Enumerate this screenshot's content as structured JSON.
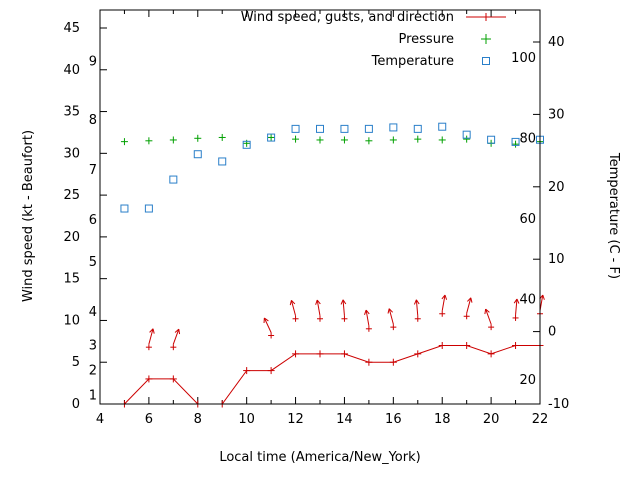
{
  "colors": {
    "wind": "#cc0000",
    "pressure": "#00a000",
    "temperature": "#2a7fc9",
    "axis": "#000000",
    "background": "#ffffff"
  },
  "legend": [
    {
      "label": "Wind speed, gusts, and direction",
      "marker": "line-plus",
      "color_key": "wind"
    },
    {
      "label": "Pressure",
      "marker": "plus",
      "color_key": "pressure"
    },
    {
      "label": "Temperature",
      "marker": "square",
      "color_key": "temperature"
    }
  ],
  "chart_data": {
    "type": "line",
    "title": "",
    "x_axis": {
      "label": "Local time (America/New_York)",
      "range": [
        4,
        22
      ],
      "major_ticks": [
        4,
        6,
        8,
        10,
        12,
        14,
        16,
        18,
        20,
        22
      ],
      "minor_tick_step": 1
    },
    "y_left": {
      "label": "Wind speed (kt - Beaufort)",
      "range": [
        0,
        47.1
      ],
      "ticks": [
        0,
        5,
        10,
        15,
        20,
        25,
        30,
        35,
        40,
        45
      ],
      "beaufort_scale": {
        "1": 1,
        "2": 4,
        "3": 7,
        "4": 11,
        "5": 17,
        "6": 22,
        "7": 28,
        "8": 34,
        "9": 41
      }
    },
    "y_right": {
      "label": "Temperature (C - F)",
      "range": [
        -10,
        44.4
      ],
      "ticks": [
        -10,
        0,
        10,
        20,
        30,
        40
      ],
      "fahrenheit_scale": [
        20,
        40,
        60,
        80,
        100
      ]
    },
    "grid": false,
    "legend_position": "top-right-inside",
    "series": [
      {
        "name": "wind_speed_kt",
        "type": "line",
        "marker": "plus",
        "x": [
          5,
          6,
          7,
          8,
          9,
          10,
          11,
          12,
          13,
          14,
          15,
          16,
          17,
          18,
          19,
          20,
          21,
          22
        ],
        "values": [
          0,
          3,
          3,
          0,
          0,
          4,
          4,
          6,
          6,
          6,
          5,
          5,
          6,
          7,
          7,
          6,
          7,
          7
        ]
      },
      {
        "name": "wind_gusts_kt",
        "type": "vector",
        "points": [
          {
            "x": 6,
            "gust": 6.8,
            "dir_deg": 15
          },
          {
            "x": 7,
            "gust": 6.8,
            "dir_deg": 20
          },
          {
            "x": 11,
            "gust": 8.2,
            "dir_deg": -25
          },
          {
            "x": 12,
            "gust": 10.2,
            "dir_deg": -15
          },
          {
            "x": 13,
            "gust": 10.2,
            "dir_deg": -10
          },
          {
            "x": 14,
            "gust": 10.2,
            "dir_deg": -5
          },
          {
            "x": 15,
            "gust": 9.0,
            "dir_deg": -10
          },
          {
            "x": 16,
            "gust": 9.2,
            "dir_deg": -15
          },
          {
            "x": 17,
            "gust": 10.2,
            "dir_deg": -5
          },
          {
            "x": 18,
            "gust": 10.8,
            "dir_deg": 10
          },
          {
            "x": 19,
            "gust": 10.5,
            "dir_deg": 15
          },
          {
            "x": 20,
            "gust": 9.2,
            "dir_deg": -20
          },
          {
            "x": 21,
            "gust": 10.3,
            "dir_deg": 5
          },
          {
            "x": 22,
            "gust": 10.8,
            "dir_deg": 10
          }
        ]
      },
      {
        "name": "pressure",
        "type": "scatter",
        "marker": "plus",
        "x": [
          5,
          6,
          7,
          8,
          9,
          10,
          11,
          12,
          13,
          14,
          15,
          16,
          17,
          18,
          19,
          20,
          21,
          22
        ],
        "values_plot_units": [
          31.4,
          31.5,
          31.6,
          31.8,
          31.9,
          31.2,
          31.9,
          31.7,
          31.6,
          31.6,
          31.5,
          31.6,
          31.7,
          31.6,
          31.7,
          31.2,
          31.1,
          31.4
        ]
      },
      {
        "name": "temperature_c",
        "type": "scatter",
        "marker": "square",
        "x": [
          5,
          6,
          7,
          8,
          9,
          10,
          11,
          12,
          13,
          14,
          15,
          16,
          17,
          18,
          19,
          20,
          21,
          22
        ],
        "values": [
          17,
          17,
          21,
          24.5,
          23.5,
          25.8,
          26.8,
          28,
          28,
          28,
          28,
          28.2,
          28,
          28.3,
          27.2,
          26.5,
          26.2,
          26.5
        ]
      }
    ]
  }
}
